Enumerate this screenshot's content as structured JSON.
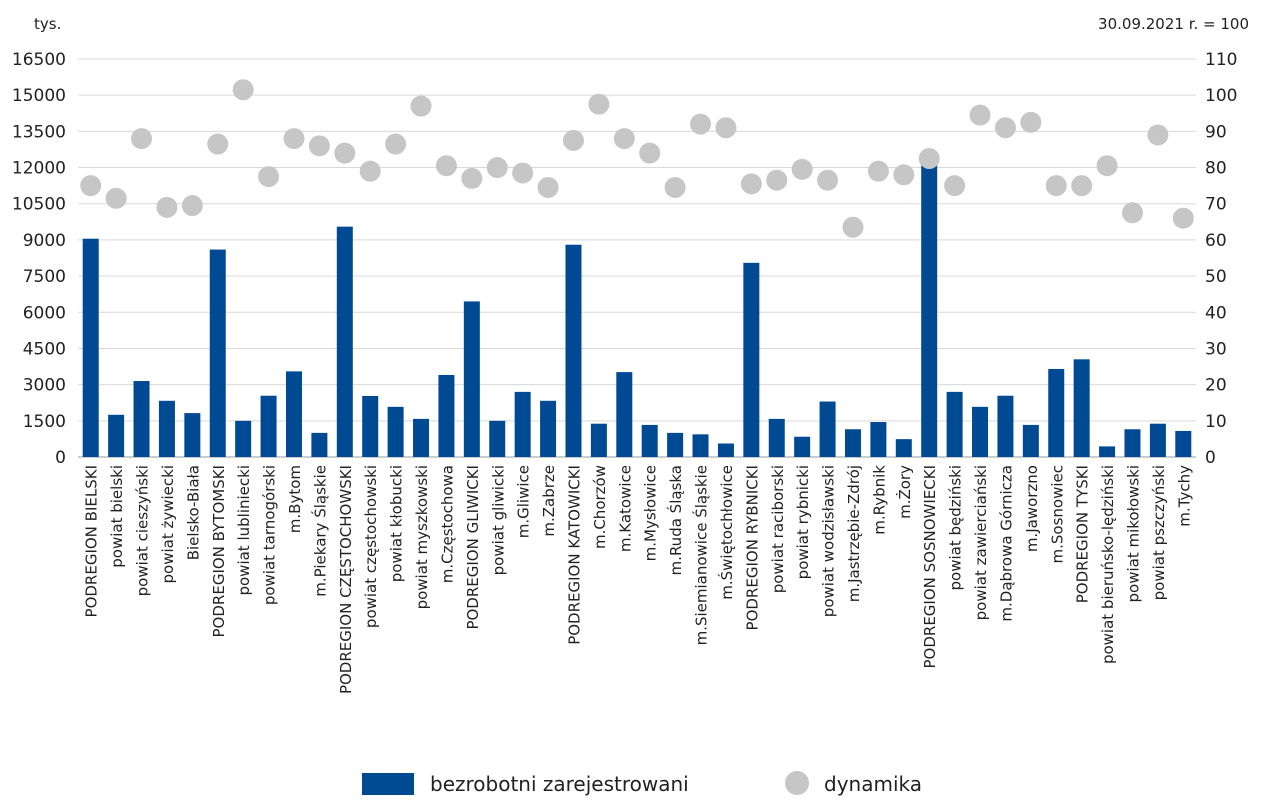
{
  "chart_data": {
    "type": "bar",
    "left_unit": "tys.",
    "right_unit": "30.09.2021 r. = 100",
    "ylim": [
      0,
      16500
    ],
    "y_ticks": [
      "0",
      "1500",
      "3000",
      "4500",
      "6000",
      "7500",
      "9000",
      "10500",
      "12000",
      "13500",
      "15000",
      "16500"
    ],
    "y2lim": [
      0,
      110
    ],
    "y2_ticks": [
      "0",
      "10",
      "20",
      "30",
      "40",
      "50",
      "60",
      "70",
      "80",
      "90",
      "100",
      "110"
    ],
    "grid": true,
    "legend_position": "bottom",
    "categories": [
      "PODREGION BIELSKI",
      "powiat bielski",
      "powiat cieszyński",
      "powiat żywiecki",
      "Bielsko-Biała",
      "PODREGION BYTOMSKI",
      "powiat lubliniecki",
      "powiat tarnogórski",
      "m.Bytom",
      "m.Piekary Śląskie",
      "PODREGION CZĘSTOCHOWSKI",
      "powiat częstochowski",
      "powiat kłobucki",
      "powiat myszkowski",
      "m.Częstochowa",
      "PODREGION GLIWICKI",
      "powiat gliwicki",
      "m.Gliwice",
      "m.Zabrze",
      "PODREGION KATOWICKI",
      "m.Chorzów",
      "m.Katowice",
      "m.Mysłowice",
      "m.Ruda Śląska",
      "m.Siemianowice Śląskie",
      "m.Świętochłowice",
      "PODREGION RYBNICKI",
      "powiat raciborski",
      "powiat rybnicki",
      "powiat wodzisławski",
      "m.Jastrzębie-Zdrój",
      "m.Rybnik",
      "m.Żory",
      "PODREGION SOSNOWIECKI",
      "powiat będziński",
      "powiat zawierciański",
      "m.Dąbrowa Górnicza",
      "m.Jaworzno",
      "m.Sosnowiec",
      "PODREGION TYSKI",
      "powiat bieruńsko-lędziński",
      "powiat mikołowski",
      "powiat pszczyński",
      "m.Tychy"
    ],
    "series": [
      {
        "name": "bezrobotni zarejestrowani",
        "axis": "left",
        "color": "#004a94",
        "values": [
          9050,
          1750,
          3150,
          2330,
          1820,
          8600,
          1500,
          2540,
          3550,
          1000,
          9550,
          2530,
          2080,
          1580,
          3400,
          6450,
          1500,
          2700,
          2330,
          8800,
          1380,
          3520,
          1330,
          1000,
          940,
          560,
          8050,
          1580,
          840,
          2300,
          1150,
          1450,
          740,
          12200,
          2700,
          2080,
          2540,
          1330,
          3650,
          4050,
          440,
          1150,
          1380,
          1080
        ]
      },
      {
        "name": "dynamika",
        "axis": "right",
        "color": "#c6c6c6",
        "values": [
          75,
          71.5,
          88,
          69,
          69.5,
          86.5,
          101.5,
          77.5,
          88,
          86,
          84,
          79,
          86.5,
          97,
          80.5,
          77,
          80,
          78.5,
          74.5,
          87.5,
          97.5,
          88,
          84,
          74.5,
          92,
          91,
          75.5,
          76.5,
          79.5,
          76.5,
          63.5,
          79,
          78,
          82.5,
          75,
          94.5,
          91,
          92.5,
          75,
          75,
          80.5,
          67.5,
          89,
          66
        ]
      }
    ]
  }
}
